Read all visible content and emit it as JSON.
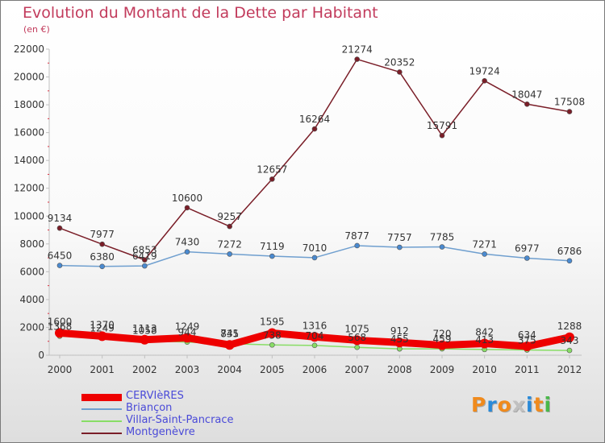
{
  "title": "Evolution du Montant de la Dette par Habitant",
  "unit_label": "(en €)",
  "logo_text": "Proxiti",
  "colors": {
    "title": "#c23b5c",
    "axis": "#c0c0c0",
    "tick_text": "#333333",
    "legend_text": "#4a4ad8",
    "logo_letters": [
      "#f08a1c",
      "#2a8ad8",
      "#f08a1c",
      "#c0c0c0",
      "#2a8ad8",
      "#f08a1c",
      "#4ab84a"
    ]
  },
  "chart_data": {
    "type": "line",
    "title": "Evolution du Montant de la Dette par Habitant",
    "subtitle": "(en €)",
    "x": [
      2000,
      2001,
      2002,
      2003,
      2004,
      2005,
      2006,
      2007,
      2008,
      2009,
      2010,
      2011,
      2012
    ],
    "ylim": [
      0,
      22000
    ],
    "yticks": [
      0,
      2000,
      4000,
      6000,
      8000,
      10000,
      12000,
      14000,
      16000,
      18000,
      20000,
      22000
    ],
    "grid": false,
    "legend_position": "bottom-left",
    "series": [
      {
        "name": "Montgenèvre",
        "color": "#7a1e28",
        "marker_fill": "#7a1e28",
        "line_width": 1.5,
        "marker_radius": 3,
        "show_labels": true,
        "values": [
          9134,
          7977,
          6853,
          10600,
          9257,
          12657,
          16264,
          21274,
          20352,
          15791,
          19724,
          18047,
          17508
        ]
      },
      {
        "name": "Briançon",
        "color": "#6f9fcf",
        "marker_fill": "#4a8ad0",
        "line_width": 1.5,
        "marker_radius": 3,
        "show_labels": true,
        "values": [
          6450,
          6380,
          6419,
          7430,
          7272,
          7119,
          7010,
          7877,
          7757,
          7785,
          7271,
          6977,
          6786
        ]
      },
      {
        "name": "Villar-Saint-Pancrace",
        "color": "#88dd66",
        "marker_fill": "#88dd66",
        "line_width": 1.5,
        "marker_radius": 3,
        "show_labels": true,
        "values": [
          1368,
          1249,
          1058,
          944,
          835,
          738,
          704,
          568,
          455,
          459,
          413,
          375,
          343
        ]
      },
      {
        "name": "CERVIèRES",
        "color": "#ee0000",
        "marker_fill": "#ee0000",
        "line_width": 9,
        "marker_radius": 6,
        "show_labels": true,
        "values": [
          1600,
          1370,
          1113,
          1249,
          741,
          1595,
          1316,
          1075,
          912,
          720,
          842,
          634,
          1288
        ]
      }
    ],
    "legend_order": [
      "CERVIèRES",
      "Briançon",
      "Villar-Saint-Pancrace",
      "Montgenèvre"
    ]
  }
}
